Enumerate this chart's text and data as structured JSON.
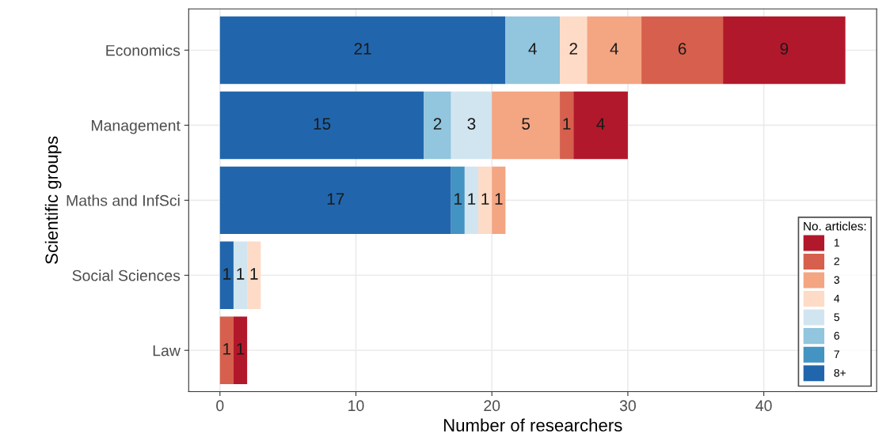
{
  "chart_data": {
    "type": "bar",
    "orientation": "horizontal",
    "stacked": true,
    "xlabel": "Number of researchers",
    "ylabel": "Scientific groups",
    "legend_title": "No. articles:",
    "categories": [
      "Economics",
      "Management",
      "Maths and InfSci",
      "Social Sciences",
      "Law"
    ],
    "series": [
      {
        "name": "8+",
        "color": "#2166ac",
        "values": [
          21,
          15,
          17,
          1,
          null
        ]
      },
      {
        "name": "7",
        "color": "#4393c3",
        "values": [
          null,
          null,
          1,
          null,
          null
        ]
      },
      {
        "name": "6",
        "color": "#92c5de",
        "values": [
          4,
          2,
          null,
          null,
          null
        ]
      },
      {
        "name": "5",
        "color": "#d1e5f0",
        "values": [
          null,
          3,
          1,
          1,
          null
        ]
      },
      {
        "name": "4",
        "color": "#fddbc7",
        "values": [
          2,
          null,
          1,
          1,
          null
        ]
      },
      {
        "name": "3",
        "color": "#f4a582",
        "values": [
          4,
          5,
          1,
          null,
          null
        ]
      },
      {
        "name": "2",
        "color": "#d6604d",
        "values": [
          6,
          1,
          null,
          null,
          1
        ]
      },
      {
        "name": "1",
        "color": "#b2182b",
        "values": [
          9,
          4,
          null,
          null,
          1
        ]
      }
    ],
    "xlim": [
      -2.3,
      48.3
    ],
    "xticks": [
      0,
      10,
      20,
      30,
      40
    ],
    "grid": true,
    "legend": "bottom right",
    "data_labels": true
  }
}
